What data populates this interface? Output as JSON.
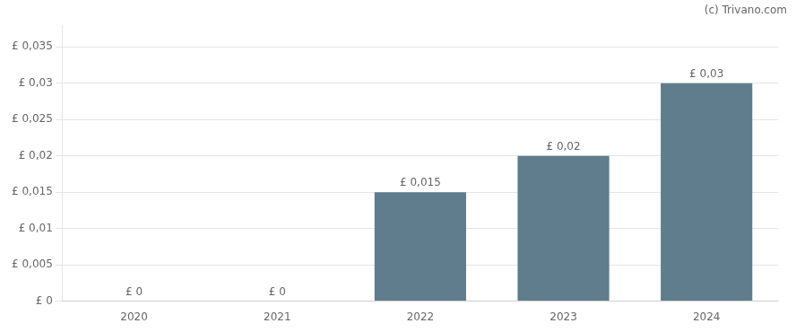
{
  "chart_data": {
    "type": "bar",
    "categories": [
      "2020",
      "2021",
      "2022",
      "2023",
      "2024"
    ],
    "values": [
      0,
      0,
      0.015,
      0.02,
      0.03
    ],
    "value_labels": [
      "£ 0",
      "£ 0",
      "£ 0,015",
      "£ 0,02",
      "£ 0,03"
    ],
    "data_labels": true,
    "color": "#5f7d8c",
    "ylim": [
      0,
      0.038
    ],
    "yticks": [
      {
        "value": 0,
        "label": "£ 0"
      },
      {
        "value": 0.005,
        "label": "£ 0,005"
      },
      {
        "value": 0.01,
        "label": "£ 0,01"
      },
      {
        "value": 0.015,
        "label": "£ 0,015"
      },
      {
        "value": 0.02,
        "label": "£ 0,02"
      },
      {
        "value": 0.025,
        "label": "£ 0,025"
      },
      {
        "value": 0.03,
        "label": "£ 0,03"
      },
      {
        "value": 0.035,
        "label": "£ 0,035"
      }
    ],
    "grid": "y",
    "annotations": [
      "(c) Trivano.com"
    ]
  }
}
